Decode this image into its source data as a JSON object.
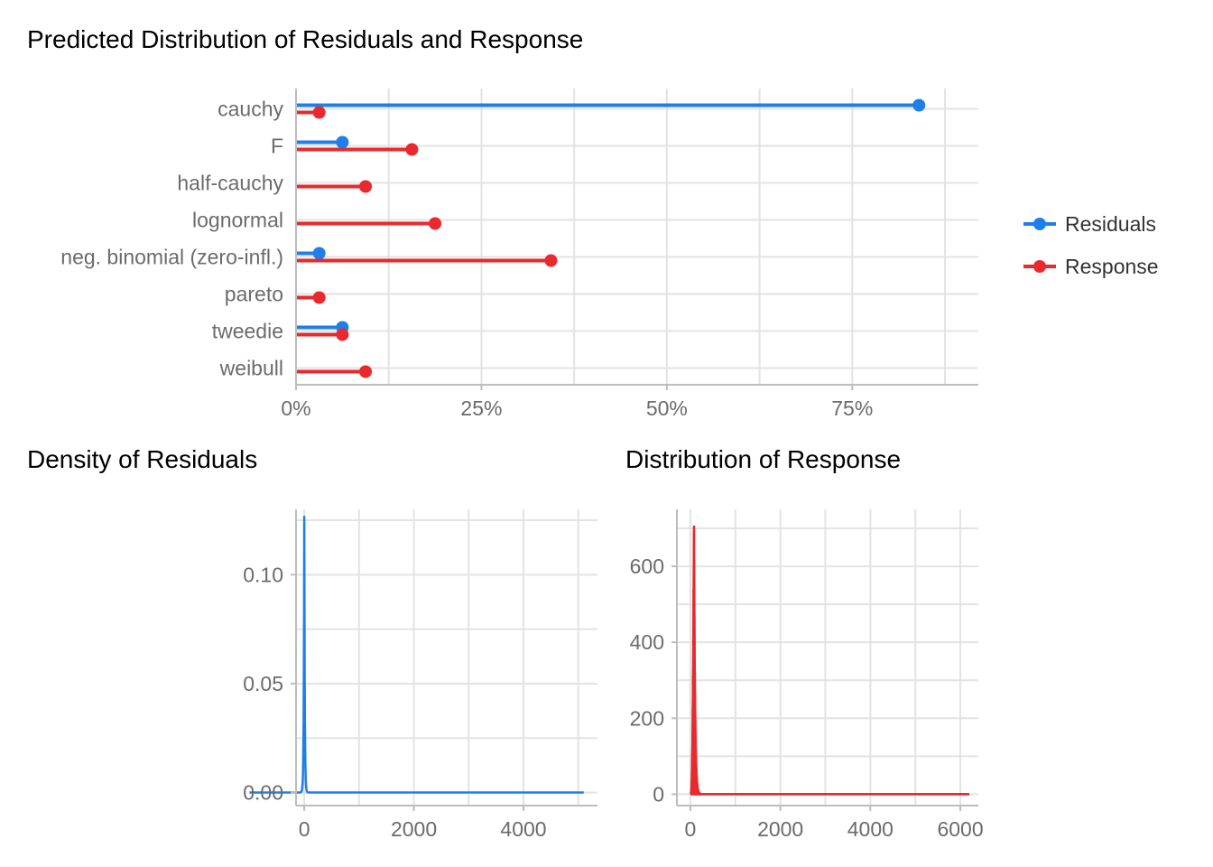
{
  "colors": {
    "residuals": "#1F7FE8",
    "response": "#E8292E"
  },
  "chart_data": [
    {
      "type": "dot-bar",
      "title": "Predicted Distribution of Residuals and Response",
      "categories": [
        "cauchy",
        "F",
        "half-cauchy",
        "lognormal",
        "neg. binomial (zero-infl.)",
        "pareto",
        "tweedie",
        "weibull"
      ],
      "series": [
        {
          "name": "Residuals",
          "values": [
            0.84,
            0.0625,
            0,
            0,
            0.03125,
            0,
            0.0625,
            0
          ]
        },
        {
          "name": "Response",
          "values": [
            0.03125,
            0.15625,
            0.09375,
            0.1875,
            0.34375,
            0.03125,
            0.0625,
            0.09375
          ]
        }
      ],
      "xlim": [
        0,
        0.92
      ],
      "xticks": [
        0,
        0.25,
        0.5,
        0.75
      ],
      "xtick_labels": [
        "0%",
        "25%",
        "50%",
        "75%"
      ],
      "legend": [
        "Residuals",
        "Response"
      ],
      "legend_position": "right",
      "grid": true
    },
    {
      "type": "line",
      "title": "Density of Residuals",
      "xlim": [
        -150,
        5350
      ],
      "ylim": [
        -0.006,
        0.13
      ],
      "xticks": [
        0,
        2000,
        4000
      ],
      "xtick_labels": [
        "0",
        "2000",
        "4000"
      ],
      "yticks": [
        0,
        0.05,
        0.1
      ],
      "ytick_labels": [
        "0.00",
        "0.05",
        "0.10"
      ],
      "x_range": [
        -1000,
        5100
      ],
      "peak": {
        "x": 0,
        "y": 0.127
      },
      "grid": true
    },
    {
      "type": "area",
      "title": "Distribution of Response",
      "xlim": [
        -300,
        6400
      ],
      "ylim": [
        -30,
        750
      ],
      "xticks": [
        0,
        2000,
        4000,
        6000
      ],
      "xtick_labels": [
        "0",
        "2000",
        "4000",
        "6000"
      ],
      "yticks": [
        0,
        200,
        400,
        600
      ],
      "ytick_labels": [
        "0",
        "200",
        "400",
        "600"
      ],
      "x_range": [
        0,
        6200
      ],
      "peak": {
        "x": 80,
        "y": 740
      },
      "grid": true
    }
  ]
}
